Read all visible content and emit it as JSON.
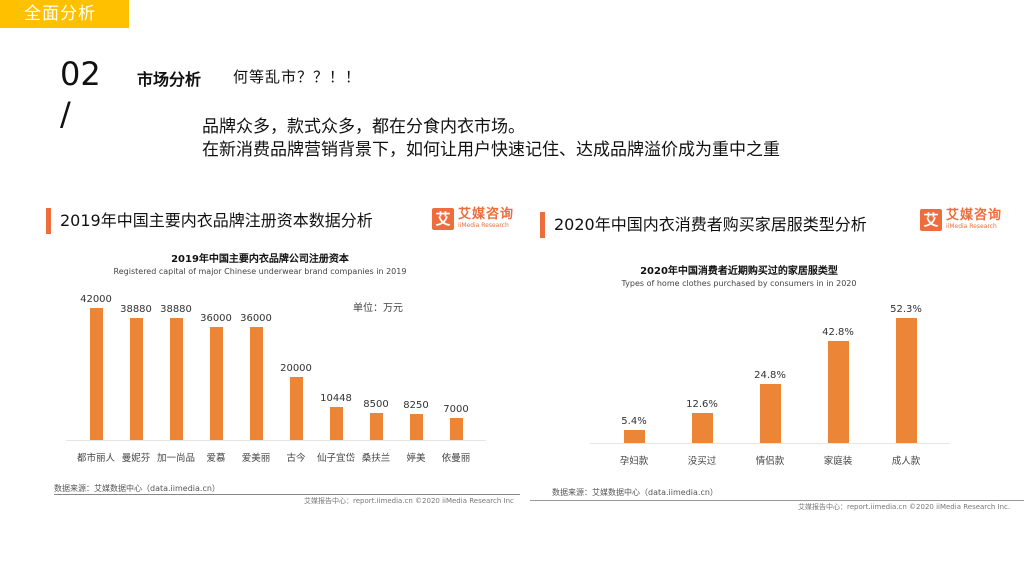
{
  "header": {
    "section_tag": "全面分析",
    "number": "02",
    "slash": "/",
    "heading": "市场分析",
    "heading_sub": "何等乱市？？！！",
    "desc_line1": "品牌众多，款式众多，都在分食内衣市场。",
    "desc_line2": "在新消费品牌营销背景下，如何让用户快速记住、达成品牌溢价成为重中之重"
  },
  "left_panel": {
    "title": "2019年中国主要内衣品牌注册资本数据分析",
    "logo": {
      "mark": "艾",
      "cn": "艾媒咨询",
      "en": "iiMedia Research"
    },
    "chart_title": "2019年中国主要内衣品牌公司注册资本",
    "chart_subtitle": "Registered capital of major Chinese underwear brand companies in 2019",
    "unit": "单位：万元",
    "source": "数据来源：艾媒数据中心（data.iimedia.cn）",
    "copyright": "艾媒报告中心：report.iimedia.cn  ©2020  iiMedia Research  Inc"
  },
  "right_panel": {
    "title": "2020年中国内衣消费者购买家居服类型分析",
    "logo": {
      "mark": "艾",
      "cn": "艾媒咨询",
      "en": "iiMedia Research"
    },
    "chart_title": "2020年中国消费者近期购买过的家居服类型",
    "chart_subtitle": "Types of home clothes purchased by consumers in in 2020",
    "source": "数据来源：艾媒数据中心（data.iimedia.cn）",
    "copyright": "艾媒报告中心：report.iimedia.cn  ©2020  iiMedia Research  Inc."
  },
  "colors": {
    "bar": "#ed8536",
    "accent": "#ee6d3c",
    "tag": "#ffc000"
  },
  "chart_data": [
    {
      "type": "bar",
      "title": "2019年中国主要内衣品牌公司注册资本",
      "subtitle": "Registered capital of major Chinese underwear brand companies in 2019",
      "xlabel": "",
      "ylabel": "单位：万元",
      "categories": [
        "都市丽人",
        "曼妮芬",
        "加一尚品",
        "爱慕",
        "爱美丽",
        "古今",
        "仙子宜岱",
        "桑扶兰",
        "婷美",
        "依曼丽"
      ],
      "values": [
        42000,
        38880,
        38880,
        36000,
        36000,
        20000,
        10448,
        8500,
        8250,
        7000
      ],
      "value_labels": [
        "42000",
        "38880",
        "38880",
        "36000",
        "36000",
        "20000",
        "10448",
        "8500",
        "8250",
        "7000"
      ],
      "ylim": [
        0,
        42000
      ],
      "grid": false,
      "legend": "none"
    },
    {
      "type": "bar",
      "title": "2020年中国消费者近期购买过的家居服类型",
      "subtitle": "Types of home clothes purchased by consumers in in 2020",
      "xlabel": "",
      "ylabel": "",
      "categories": [
        "孕妇款",
        "没买过",
        "情侣款",
        "家庭装",
        "成人款"
      ],
      "values": [
        5.4,
        12.6,
        24.8,
        42.8,
        52.3
      ],
      "value_labels": [
        "5.4%",
        "12.6%",
        "24.8%",
        "42.8%",
        "52.3%"
      ],
      "ylim": [
        0,
        52.3
      ],
      "grid": false,
      "legend": "none"
    }
  ]
}
